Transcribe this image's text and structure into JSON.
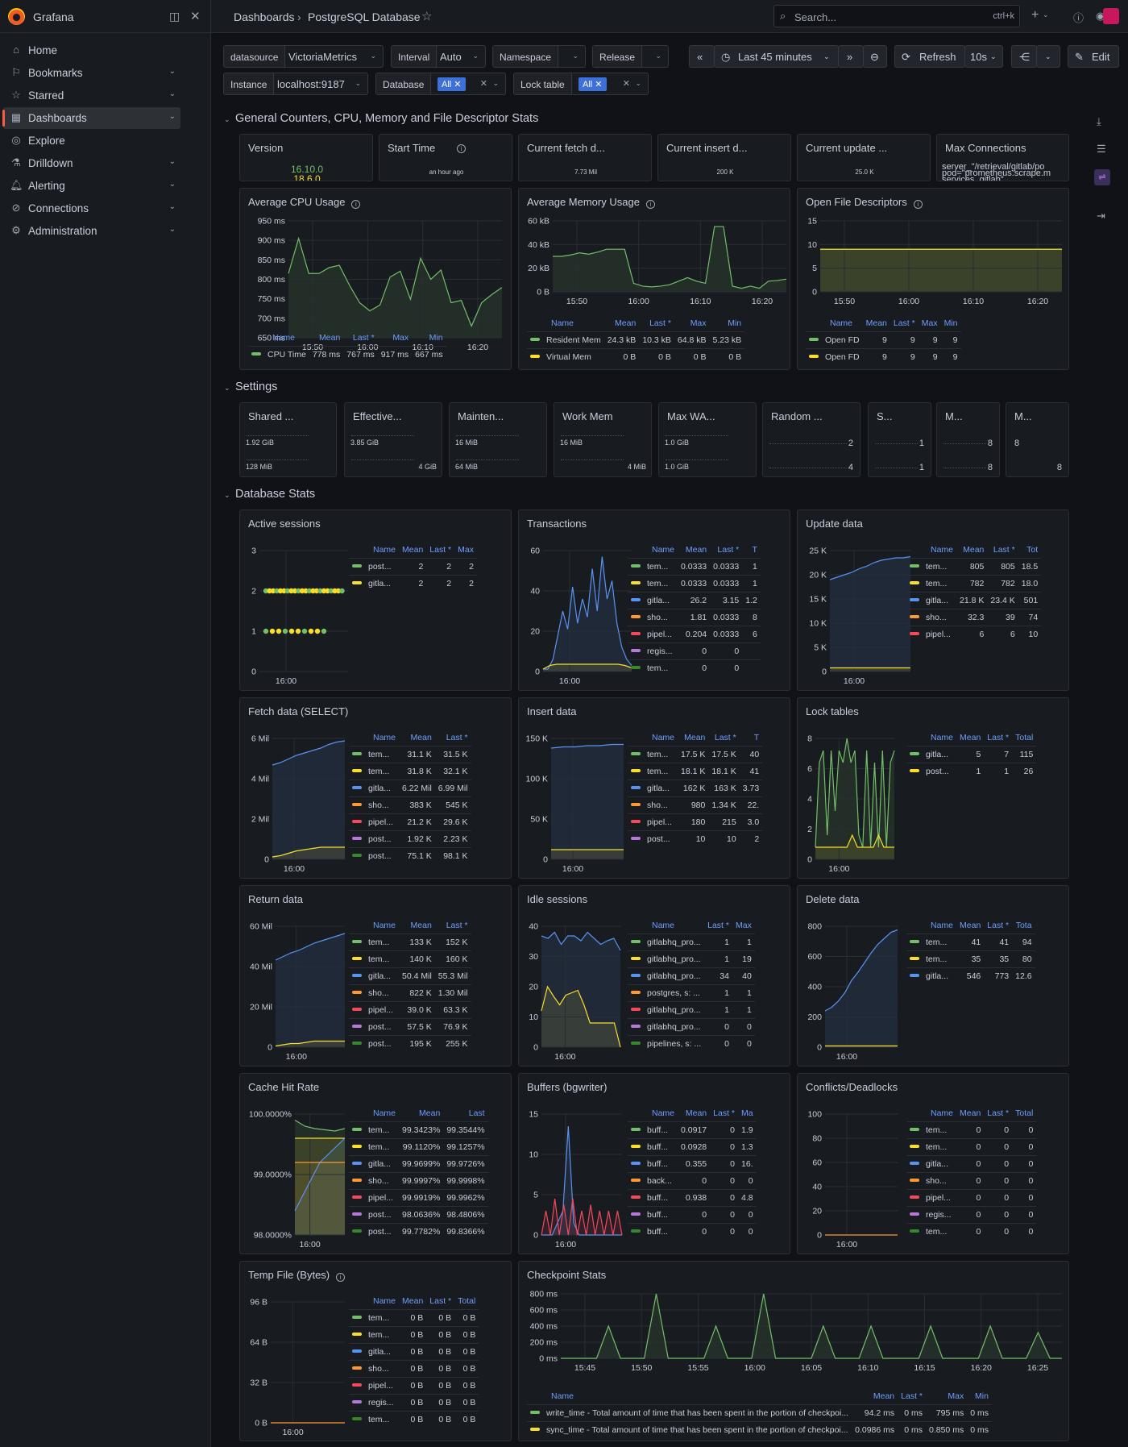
{
  "app": {
    "name": "Grafana"
  },
  "breadcrumb": [
    "Dashboards",
    "PostgreSQL Database"
  ],
  "search": {
    "placeholder": "Search...",
    "shortcut": "ctrl+k"
  },
  "nav": [
    "Home",
    "Bookmarks",
    "Starred",
    "Dashboards",
    "Explore",
    "Drilldown",
    "Alerting",
    "Connections",
    "Administration"
  ],
  "vars": {
    "datasource": {
      "label": "datasource",
      "value": "VictoriaMetrics"
    },
    "interval": {
      "label": "Interval",
      "value": "Auto"
    },
    "namespace": {
      "label": "Namespace",
      "value": ""
    },
    "release": {
      "label": "Release",
      "value": ""
    },
    "instance": {
      "label": "Instance",
      "value": "localhost:9187"
    },
    "database": {
      "label": "Database",
      "value": "All"
    },
    "locktable": {
      "label": "Lock table",
      "value": "All"
    }
  },
  "toolbar": {
    "time_range": "Last 45 minutes",
    "refresh": "Refresh",
    "refresh_interval": "10s",
    "edit": "Edit"
  },
  "rows": {
    "general": "General Counters, CPU, Memory and File Descriptor Stats",
    "settings": "Settings",
    "dbstats": "Database Stats"
  },
  "stats": [
    {
      "title": "Version",
      "values": [
        "16.10.0",
        "18.6.0"
      ]
    },
    {
      "title": "Start Time",
      "values": [
        "an hour ago"
      ]
    },
    {
      "title": "Current fetch d...",
      "values": [
        "7.73 Mil"
      ]
    },
    {
      "title": "Current insert d...",
      "values": [
        "200 K"
      ]
    },
    {
      "title": "Current update ...",
      "values": [
        "25.0 K"
      ]
    },
    {
      "title": "Max Connections",
      "values": [
        "server_\"/retrieval/gitlab/po",
        "pod=\"prometheus.scrape.m",
        "services_gitlab\""
      ]
    }
  ],
  "settings": [
    {
      "title": "Shared ...",
      "values": [
        "1.92 GiB",
        "128 MiB"
      ]
    },
    {
      "title": "Effective...",
      "values": [
        "3.85 GiB",
        "4 GiB"
      ]
    },
    {
      "title": "Mainten...",
      "values": [
        "16 MiB",
        "64 MiB"
      ]
    },
    {
      "title": "Work Mem",
      "values": [
        "16 MiB",
        "4 MiB"
      ]
    },
    {
      "title": "Max WA...",
      "values": [
        "1.0 GiB",
        "1.0 GiB"
      ]
    },
    {
      "title": "Random ...",
      "values": [
        "2",
        "4"
      ]
    },
    {
      "title": "S...",
      "values": [
        "1",
        "1"
      ]
    },
    {
      "title": "M...",
      "values": [
        "8",
        "8"
      ]
    },
    {
      "title": "M...",
      "values": [
        "8",
        "8"
      ]
    }
  ],
  "panels": {
    "cpu": {
      "title": "Average CPU Usage",
      "yticks": [
        "950 ms",
        "900 ms",
        "850 ms",
        "800 ms",
        "750 ms",
        "700 ms",
        "650 ms"
      ],
      "xticks": [
        "15:50",
        "16:00",
        "16:10",
        "16:20"
      ],
      "cols": [
        "Name",
        "Mean",
        "Last *",
        "Max",
        "Min"
      ],
      "rows": [
        [
          "CPU Time",
          "778 ms",
          "767 ms",
          "917 ms",
          "667 ms"
        ]
      ]
    },
    "mem": {
      "title": "Average Memory Usage",
      "yticks": [
        "60 kB",
        "40 kB",
        "20 kB",
        "0 B"
      ],
      "xticks": [
        "15:50",
        "16:00",
        "16:10",
        "16:20"
      ],
      "cols": [
        "Name",
        "Mean",
        "Last *",
        "Max",
        "Min"
      ],
      "rows": [
        [
          "Resident Mem",
          "24.3 kB",
          "10.3 kB",
          "64.8 kB",
          "5.23 kB"
        ],
        [
          "Virtual Mem",
          "0 B",
          "0 B",
          "0 B",
          "0 B"
        ]
      ]
    },
    "fd": {
      "title": "Open File Descriptors",
      "yticks": [
        "15",
        "10",
        "5",
        "0"
      ],
      "xticks": [
        "15:50",
        "16:00",
        "16:10",
        "16:20"
      ],
      "cols": [
        "Name",
        "Mean",
        "Last *",
        "Max",
        "Min"
      ],
      "rows": [
        [
          "Open FD",
          "9",
          "9",
          "9",
          "9"
        ],
        [
          "Open FD",
          "9",
          "9",
          "9",
          "9"
        ]
      ]
    },
    "active": {
      "title": "Active sessions",
      "yticks": [
        "3",
        "2",
        "1",
        "0"
      ],
      "xticks": [
        "16:00"
      ],
      "cols": [
        "Name",
        "Mean",
        "Last *",
        "Max"
      ],
      "rows": [
        [
          "post...",
          "2",
          "2",
          "2"
        ],
        [
          "gitla...",
          "2",
          "2",
          "2"
        ]
      ]
    },
    "trans": {
      "title": "Transactions",
      "yticks": [
        "60",
        "40",
        "20",
        "0"
      ],
      "xticks": [
        "16:00"
      ],
      "cols": [
        "Name",
        "Mean",
        "Last *",
        "T"
      ],
      "rows": [
        [
          "tem...",
          "0.0333",
          "0.0333",
          "1"
        ],
        [
          "tem...",
          "0.0333",
          "0.0333",
          "1"
        ],
        [
          "gitla...",
          "26.2",
          "3.15",
          "1.2"
        ],
        [
          "sho...",
          "1.81",
          "0.0333",
          "8"
        ],
        [
          "pipel...",
          "0.204",
          "0.0333",
          "6"
        ],
        [
          "regis...",
          "0",
          "0",
          ""
        ],
        [
          "tem...",
          "0",
          "0",
          ""
        ]
      ]
    },
    "update": {
      "title": "Update data",
      "yticks": [
        "25 K",
        "20 K",
        "15 K",
        "10 K",
        "5 K",
        "0"
      ],
      "xticks": [
        "16:00"
      ],
      "cols": [
        "Name",
        "Mean",
        "Last *",
        "Tot"
      ],
      "rows": [
        [
          "tem...",
          "805",
          "805",
          "18.5"
        ],
        [
          "tem...",
          "782",
          "782",
          "18.0"
        ],
        [
          "gitla...",
          "21.8 K",
          "23.4 K",
          "501"
        ],
        [
          "sho...",
          "32.3",
          "39",
          "74"
        ],
        [
          "pipel...",
          "6",
          "6",
          "10"
        ]
      ]
    },
    "fetch": {
      "title": "Fetch data (SELECT)",
      "yticks": [
        "6 Mil",
        "4 Mil",
        "2 Mil",
        "0"
      ],
      "xticks": [
        "16:00"
      ],
      "cols": [
        "Name",
        "Mean",
        "Last *"
      ],
      "rows": [
        [
          "tem...",
          "31.1 K",
          "31.5 K"
        ],
        [
          "tem...",
          "31.8 K",
          "32.1 K"
        ],
        [
          "gitla...",
          "6.22 Mil",
          "6.99 Mil"
        ],
        [
          "sho...",
          "383 K",
          "545 K"
        ],
        [
          "pipel...",
          "21.2 K",
          "29.6 K"
        ],
        [
          "post...",
          "1.92 K",
          "2.23 K"
        ],
        [
          "post...",
          "75.1 K",
          "98.1 K"
        ]
      ]
    },
    "insert": {
      "title": "Insert data",
      "yticks": [
        "150 K",
        "100 K",
        "50 K",
        "0"
      ],
      "xticks": [
        "16:00"
      ],
      "cols": [
        "Name",
        "Mean",
        "Last *",
        "T"
      ],
      "rows": [
        [
          "tem...",
          "17.5 K",
          "17.5 K",
          "40"
        ],
        [
          "tem...",
          "18.1 K",
          "18.1 K",
          "41"
        ],
        [
          "gitla...",
          "162 K",
          "163 K",
          "3.73"
        ],
        [
          "sho...",
          "980",
          "1.34 K",
          "22."
        ],
        [
          "pipel...",
          "180",
          "215",
          "3.0"
        ],
        [
          "post...",
          "10",
          "10",
          "2"
        ]
      ]
    },
    "lock": {
      "title": "Lock tables",
      "yticks": [
        "8",
        "6",
        "4",
        "2",
        "0"
      ],
      "xticks": [
        "16:00"
      ],
      "cols": [
        "Name",
        "Mean",
        "Last *",
        "Total"
      ],
      "rows": [
        [
          "gitla...",
          "5",
          "7",
          "115"
        ],
        [
          "post...",
          "1",
          "1",
          "26"
        ]
      ]
    },
    "return": {
      "title": "Return data",
      "yticks": [
        "60 Mil",
        "40 Mil",
        "20 Mil",
        "0"
      ],
      "xticks": [
        "16:00"
      ],
      "cols": [
        "Name",
        "Mean",
        "Last *"
      ],
      "rows": [
        [
          "tem...",
          "133 K",
          "152 K"
        ],
        [
          "tem...",
          "140 K",
          "160 K"
        ],
        [
          "gitla...",
          "50.4 Mil",
          "55.3 Mil"
        ],
        [
          "sho...",
          "822 K",
          "1.30 Mil"
        ],
        [
          "pipel...",
          "39.0 K",
          "63.3 K"
        ],
        [
          "post...",
          "57.5 K",
          "76.9 K"
        ],
        [
          "post...",
          "195 K",
          "255 K"
        ]
      ]
    },
    "idle": {
      "title": "Idle sessions",
      "yticks": [
        "40",
        "30",
        "20",
        "10",
        "0"
      ],
      "xticks": [
        "16:00"
      ],
      "cols": [
        "Name",
        "Last *",
        "Max"
      ],
      "rows": [
        [
          "gitlabhq_pro...",
          "1",
          "1"
        ],
        [
          "gitlabhq_pro...",
          "1",
          "19"
        ],
        [
          "gitlabhq_pro...",
          "34",
          "40"
        ],
        [
          "postgres, s: ...",
          "1",
          "1"
        ],
        [
          "gitlabhq_pro...",
          "1",
          "1"
        ],
        [
          "gitlabhq_pro...",
          "0",
          "0"
        ],
        [
          "pipelines, s: ...",
          "0",
          "0"
        ]
      ]
    },
    "delete": {
      "title": "Delete data",
      "yticks": [
        "800",
        "600",
        "400",
        "200",
        "0"
      ],
      "xticks": [
        "16:00"
      ],
      "cols": [
        "Name",
        "Mean",
        "Last *",
        "Tota"
      ],
      "rows": [
        [
          "tem...",
          "41",
          "41",
          "94"
        ],
        [
          "tem...",
          "35",
          "35",
          "80"
        ],
        [
          "gitla...",
          "546",
          "773",
          "12.6"
        ]
      ]
    },
    "cache": {
      "title": "Cache Hit Rate",
      "yticks": [
        "100.0000%",
        "99.0000%",
        "98.0000%"
      ],
      "xticks": [
        "16:00"
      ],
      "cols": [
        "Name",
        "Mean",
        "Last"
      ],
      "rows": [
        [
          "tem...",
          "99.3423%",
          "99.3544%"
        ],
        [
          "tem...",
          "99.1120%",
          "99.1257%"
        ],
        [
          "gitla...",
          "99.9699%",
          "99.9726%"
        ],
        [
          "sho...",
          "99.9997%",
          "99.9998%"
        ],
        [
          "pipel...",
          "99.9919%",
          "99.9962%"
        ],
        [
          "post...",
          "98.0636%",
          "98.4806%"
        ],
        [
          "post...",
          "99.7782%",
          "99.8366%"
        ]
      ]
    },
    "buffers": {
      "title": "Buffers (bgwriter)",
      "yticks": [
        "15",
        "10",
        "5",
        "0"
      ],
      "xticks": [
        "16:00"
      ],
      "cols": [
        "Name",
        "Mean",
        "Last *",
        "Ma"
      ],
      "rows": [
        [
          "buff...",
          "0.0917",
          "0",
          "1.9"
        ],
        [
          "buff...",
          "0.0928",
          "0",
          "1.3"
        ],
        [
          "buff...",
          "0.355",
          "0",
          "16."
        ],
        [
          "back...",
          "0",
          "0",
          "0"
        ],
        [
          "buff...",
          "0.938",
          "0",
          "4.8"
        ],
        [
          "buff...",
          "0",
          "0",
          "0"
        ],
        [
          "buff...",
          "0",
          "0",
          "0"
        ]
      ]
    },
    "conflicts": {
      "title": "Conflicts/Deadlocks",
      "yticks": [
        "100",
        "80",
        "60",
        "40",
        "20",
        "0"
      ],
      "xticks": [
        "16:00"
      ],
      "cols": [
        "Name",
        "Mean",
        "Last *",
        "Total"
      ],
      "rows": [
        [
          "tem...",
          "0",
          "0",
          "0"
        ],
        [
          "tem...",
          "0",
          "0",
          "0"
        ],
        [
          "gitla...",
          "0",
          "0",
          "0"
        ],
        [
          "sho...",
          "0",
          "0",
          "0"
        ],
        [
          "pipel...",
          "0",
          "0",
          "0"
        ],
        [
          "regis...",
          "0",
          "0",
          "0"
        ],
        [
          "tem...",
          "0",
          "0",
          "0"
        ]
      ]
    },
    "temp": {
      "title": "Temp File (Bytes)",
      "yticks": [
        "96 B",
        "64 B",
        "32 B",
        "0 B"
      ],
      "xticks": [
        "16:00"
      ],
      "cols": [
        "Name",
        "Mean",
        "Last *",
        "Total"
      ],
      "rows": [
        [
          "tem...",
          "0 B",
          "0 B",
          "0 B"
        ],
        [
          "tem...",
          "0 B",
          "0 B",
          "0 B"
        ],
        [
          "gitla...",
          "0 B",
          "0 B",
          "0 B"
        ],
        [
          "sho...",
          "0 B",
          "0 B",
          "0 B"
        ],
        [
          "pipel...",
          "0 B",
          "0 B",
          "0 B"
        ],
        [
          "regis...",
          "0 B",
          "0 B",
          "0 B"
        ],
        [
          "tem...",
          "0 B",
          "0 B",
          "0 B"
        ]
      ]
    },
    "checkpoint": {
      "title": "Checkpoint Stats",
      "yticks": [
        "800 ms",
        "600 ms",
        "400 ms",
        "200 ms",
        "0 ms"
      ],
      "xticks": [
        "15:45",
        "15:50",
        "15:55",
        "16:00",
        "16:05",
        "16:10",
        "16:15",
        "16:20",
        "16:25"
      ],
      "cols": [
        "Name",
        "Mean",
        "Last *",
        "Max",
        "Min"
      ],
      "rows": [
        [
          "write_time - Total amount of time that has been spent in the portion of checkpoi...",
          "94.2 ms",
          "0 ms",
          "795 ms",
          "0 ms"
        ],
        [
          "sync_time - Total amount of time that has been spent in the portion of checkpoi...",
          "0.0986 ms",
          "0 ms",
          "0.850 ms",
          "0 ms"
        ]
      ]
    }
  },
  "colors": {
    "green": "#73bf69",
    "yellow": "#fade2a",
    "blue": "#5794f2",
    "orange": "#ff9830",
    "red": "#f2495c",
    "purple": "#b877d9",
    "green2": "#37872d"
  }
}
